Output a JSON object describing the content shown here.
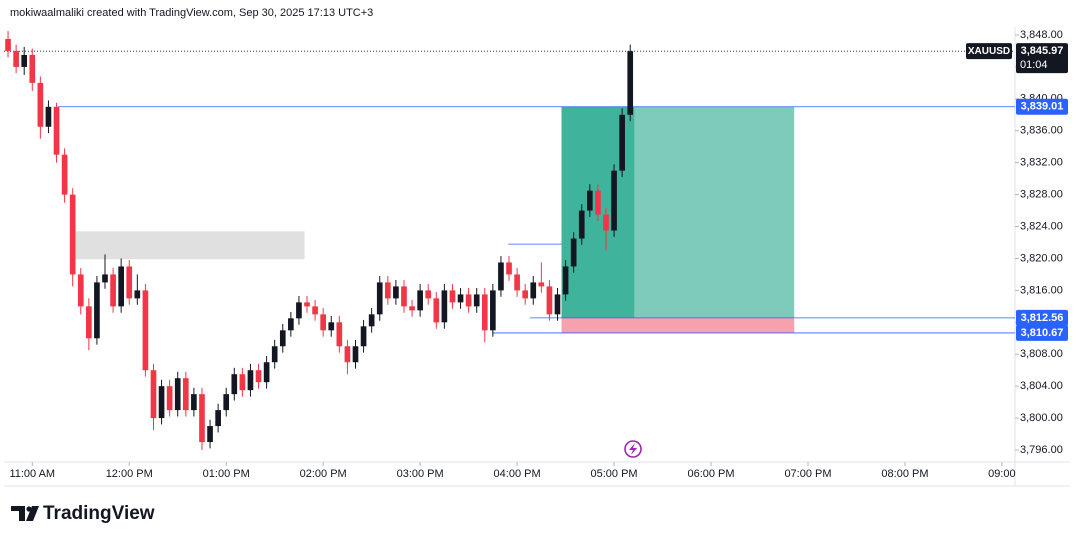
{
  "chart_data": {
    "type": "candlestick",
    "attribution": "mokiwaalmaliki created with TradingView.com, Sep 30, 2025 17:13 UTC+3",
    "brand": "TradingView",
    "symbol": "XAUUSD",
    "countdown": "01:04",
    "up_color": "#131722",
    "down_color": "#f23645",
    "last_price": {
      "value": 3845.97,
      "label": "3,845.97"
    },
    "open": [
      3847.5,
      3846,
      3844,
      3845.5,
      3842,
      3836.5,
      3839,
      3833,
      3828,
      3818,
      3814,
      3810,
      3817,
      3818,
      3814,
      3819,
      3815,
      3816,
      3806,
      3800,
      3804,
      3801,
      3805,
      3801,
      3803,
      3797,
      3799,
      3801,
      3803,
      3805.5,
      3803.5,
      3806,
      3804.5,
      3807,
      3809,
      3811,
      3812.5,
      3814.5,
      3814,
      3813,
      3811,
      3812,
      3809,
      3807,
      3809,
      3811.5,
      3813,
      3817,
      3815,
      3816.5,
      3814,
      3813.5,
      3816,
      3815,
      3812,
      3816,
      3814.5,
      3815.5,
      3814,
      3815.5,
      3811,
      3816,
      3819.5,
      3818,
      3816,
      3815,
      3817,
      3816.5,
      3813,
      3815.5,
      3819,
      3822.5,
      3826,
      3828.5,
      3825.5,
      3823.5,
      3831,
      3838
    ],
    "high": [
      3848.5,
      3846.8,
      3846.5,
      3846.3,
      3842.8,
      3839.8,
      3839.5,
      3833.8,
      3828.8,
      3818.8,
      3815,
      3817.8,
      3820.5,
      3818.8,
      3820,
      3819.8,
      3818,
      3816.8,
      3806.8,
      3804.8,
      3804.8,
      3805.8,
      3805.8,
      3803.8,
      3803.8,
      3799.8,
      3801.8,
      3803.8,
      3806.3,
      3806.3,
      3806.8,
      3806.8,
      3807.8,
      3809.8,
      3811.8,
      3813.3,
      3815.3,
      3815.3,
      3814.8,
      3813.8,
      3812.8,
      3812.8,
      3809.8,
      3809.8,
      3812.3,
      3813.8,
      3817.8,
      3817.8,
      3817.3,
      3817.3,
      3814.8,
      3816.8,
      3816.8,
      3815.8,
      3816.8,
      3816.8,
      3816.3,
      3816.3,
      3816.3,
      3816.3,
      3816.8,
      3820.3,
      3820.3,
      3818.8,
      3816.8,
      3817.8,
      3819.5,
      3817.3,
      3816.3,
      3819.8,
      3823.3,
      3826.8,
      3829.3,
      3829.3,
      3826.3,
      3831.8,
      3838.8,
      3846.8
    ],
    "low": [
      3845.2,
      3843.2,
      3843,
      3841,
      3835,
      3835.7,
      3832,
      3827,
      3816.5,
      3813,
      3808.5,
      3809.2,
      3816.2,
      3813.2,
      3813.2,
      3814.2,
      3814.2,
      3805.2,
      3798.5,
      3799.2,
      3800.2,
      3800.2,
      3800.2,
      3800.2,
      3796,
      3796.2,
      3798.2,
      3800.2,
      3802.2,
      3802.7,
      3802.7,
      3803.7,
      3803.7,
      3806.2,
      3808.2,
      3810.2,
      3811.7,
      3813.2,
      3812.2,
      3810.2,
      3810.2,
      3808.2,
      3805.5,
      3806.2,
      3808.2,
      3810.7,
      3812.2,
      3814.2,
      3814.2,
      3813.2,
      3812.7,
      3812.7,
      3814.2,
      3811.2,
      3811.2,
      3813.7,
      3813.7,
      3813.2,
      3813.2,
      3809.5,
      3810.2,
      3815.2,
      3817.2,
      3815.2,
      3814.2,
      3814.2,
      3815.7,
      3812.2,
      3812.2,
      3814.7,
      3818.2,
      3821.7,
      3825.2,
      3824.7,
      3821,
      3822.7,
      3830.2,
      3837.2
    ],
    "close": [
      3846,
      3844,
      3845.5,
      3842,
      3836.5,
      3839,
      3833,
      3828,
      3818,
      3814,
      3810,
      3817,
      3818,
      3814,
      3819,
      3815,
      3816,
      3806,
      3800,
      3804,
      3801,
      3805,
      3801,
      3803,
      3797,
      3799,
      3801,
      3803,
      3805.5,
      3803.5,
      3806,
      3804.5,
      3807,
      3809,
      3811,
      3812.5,
      3814.5,
      3814,
      3813,
      3811,
      3812,
      3809,
      3807,
      3809,
      3811.5,
      3813,
      3817,
      3815,
      3816.5,
      3814,
      3813.5,
      3816,
      3815,
      3812,
      3816,
      3814.5,
      3815.5,
      3814,
      3815.5,
      3811,
      3816,
      3819.5,
      3818,
      3816,
      3815,
      3817,
      3816.5,
      3813,
      3815.5,
      3819,
      3822.5,
      3826,
      3828.5,
      3825.5,
      3823.5,
      3831,
      3838,
      3845.97
    ],
    "xlim": [
      -0.5,
      124
    ],
    "xticks": [
      {
        "value": 3,
        "label": "11:00 AM"
      },
      {
        "value": 15,
        "label": "12:00 PM"
      },
      {
        "value": 27,
        "label": "01:00 PM"
      },
      {
        "value": 39,
        "label": "02:00 PM"
      },
      {
        "value": 51,
        "label": "03:00 PM"
      },
      {
        "value": 63,
        "label": "04:00 PM"
      },
      {
        "value": 75,
        "label": "05:00 PM"
      },
      {
        "value": 87,
        "label": "06:00 PM"
      },
      {
        "value": 99,
        "label": "07:00 PM"
      },
      {
        "value": 111,
        "label": "08:00 PM"
      },
      {
        "value": 123,
        "label": "09:00"
      }
    ],
    "ylim": [
      3794.5,
      3849
    ],
    "yticks": [
      {
        "value": 3796,
        "label": "3,796.00"
      },
      {
        "value": 3800,
        "label": "3,800.00"
      },
      {
        "value": 3804,
        "label": "3,804.00"
      },
      {
        "value": 3808,
        "label": "3,808.00"
      },
      {
        "value": 3812,
        "label": "3,812.00"
      },
      {
        "value": 3816,
        "label": "3,816.00"
      },
      {
        "value": 3820,
        "label": "3,820.00"
      },
      {
        "value": 3824,
        "label": "3,824.00"
      },
      {
        "value": 3828,
        "label": "3,828.00"
      },
      {
        "value": 3832,
        "label": "3,832.00"
      },
      {
        "value": 3836,
        "label": "3,836.00"
      },
      {
        "value": 3840,
        "label": "3,840.00"
      },
      {
        "value": 3844,
        "label": "3,844.00"
      },
      {
        "value": 3848,
        "label": "3,848.00"
      }
    ],
    "zone": {
      "x": [
        7.9,
        36.7
      ],
      "top": 3823.4,
      "bottom": 3819.9,
      "color": "#e0e0e0"
    },
    "marker_line": {
      "value": 3821.8,
      "x": [
        61.9,
        68.5
      ]
    },
    "position": {
      "x": [
        68.5,
        97.3
      ],
      "target": 3839.01,
      "entry": 3812.56,
      "stop": 3810.67,
      "profit_color": "#7fcbbb",
      "profit_active_color": "#3fb39b",
      "loss_color": "#f7a1ac"
    },
    "levels": [
      {
        "value": 3839.01,
        "label": "3,839.01",
        "from": 6.2
      },
      {
        "value": 3812.56,
        "label": "3,812.56",
        "from": 64.6
      },
      {
        "value": 3810.67,
        "label": "3,810.67",
        "from": 59.9
      }
    ],
    "level_color": "#2962ff"
  }
}
